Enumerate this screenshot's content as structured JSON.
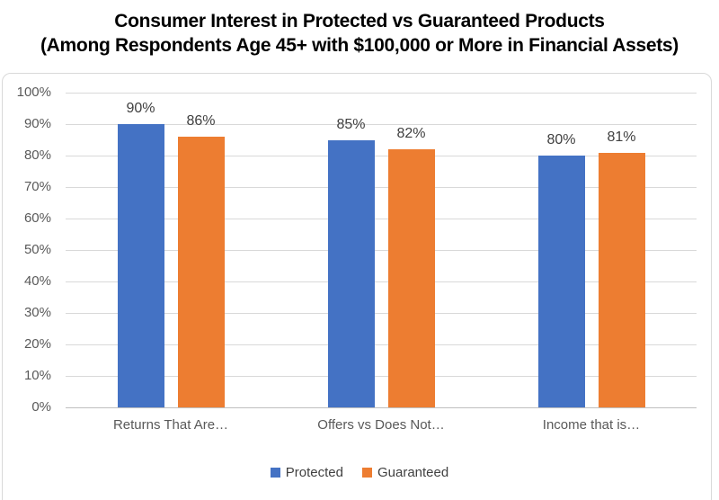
{
  "title": {
    "line1": "Consumer Interest in Protected vs Guaranteed Products",
    "line2": "(Among Respondents Age 45+ with $100,000 or More in Financial Assets)"
  },
  "chart_data": {
    "type": "bar",
    "title": "Consumer Interest in Protected vs Guaranteed Products",
    "subtitle": "(Among Respondents Age 45+ with $100,000 or More in Financial Assets)",
    "categories": [
      "Returns That Are…",
      "Offers vs Does Not…",
      "Income that is…"
    ],
    "series": [
      {
        "name": "Protected",
        "color": "#4472C4",
        "values": [
          90,
          85,
          80
        ],
        "data_labels": [
          "90%",
          "85%",
          "80%"
        ]
      },
      {
        "name": "Guaranteed",
        "color": "#ED7D31",
        "values": [
          86,
          82,
          81
        ],
        "data_labels": [
          "86%",
          "82%",
          "81%"
        ]
      }
    ],
    "y_axis": {
      "min": 0,
      "max": 100,
      "step": 10,
      "tick_labels": [
        "0%",
        "10%",
        "20%",
        "30%",
        "40%",
        "50%",
        "60%",
        "70%",
        "80%",
        "90%",
        "100%"
      ]
    },
    "grid": true,
    "legend_position": "bottom",
    "legend_entries": [
      "Protected",
      "Guaranteed"
    ]
  },
  "colors": {
    "protected": "#4472C4",
    "guaranteed": "#ED7D31",
    "gridline": "#D9D9D9",
    "axis_line": "#BFBFBF",
    "tick_text": "#595959",
    "data_label_text": "#404040",
    "title_text": "#000000",
    "frame_border": "#D9D9D9"
  }
}
